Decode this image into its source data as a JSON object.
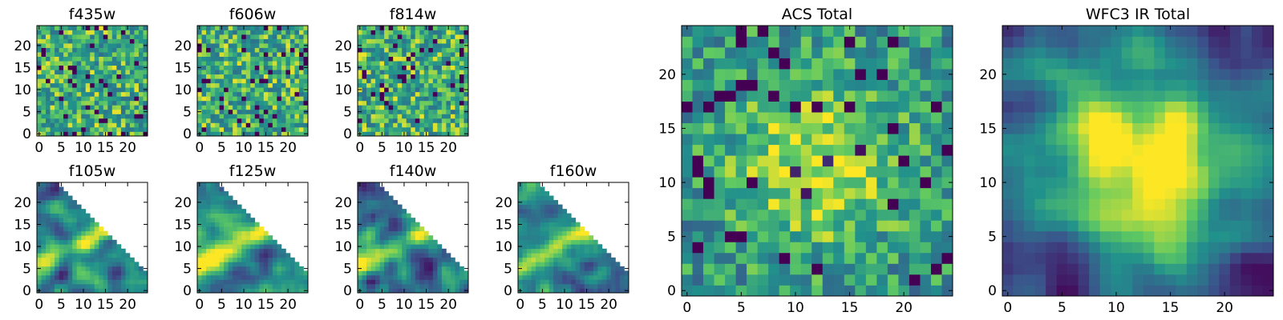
{
  "colormap": [
    "#440154",
    "#3b528b",
    "#21918c",
    "#5ec962",
    "#fde725"
  ],
  "chart_data": [
    {
      "id": "f435w",
      "type": "heatmap",
      "title": "f435w",
      "xlim": [
        0,
        24
      ],
      "ylim": [
        0,
        24
      ],
      "xticks": [
        0,
        5,
        10,
        15,
        20
      ],
      "yticks": [
        0,
        5,
        10,
        15,
        20
      ],
      "pattern": "noise",
      "seed": 11,
      "mask": "none"
    },
    {
      "id": "f606w",
      "type": "heatmap",
      "title": "f606w",
      "xlim": [
        0,
        24
      ],
      "ylim": [
        0,
        24
      ],
      "xticks": [
        0,
        5,
        10,
        15,
        20
      ],
      "yticks": [
        0,
        5,
        10,
        15,
        20
      ],
      "pattern": "noise",
      "seed": 23,
      "mask": "none"
    },
    {
      "id": "f814w",
      "type": "heatmap",
      "title": "f814w",
      "xlim": [
        0,
        24
      ],
      "ylim": [
        0,
        24
      ],
      "xticks": [
        0,
        5,
        10,
        15,
        20
      ],
      "yticks": [
        0,
        5,
        10,
        15,
        20
      ],
      "pattern": "noise",
      "seed": 37,
      "mask": "none"
    },
    {
      "id": "f105w",
      "type": "heatmap",
      "title": "f105w",
      "xlim": [
        0,
        24
      ],
      "ylim": [
        0,
        24
      ],
      "xticks": [
        0,
        5,
        10,
        15,
        20
      ],
      "yticks": [
        0,
        5,
        10,
        15,
        20
      ],
      "pattern": "smooth",
      "seed": 41,
      "mask": "upper-right"
    },
    {
      "id": "f125w",
      "type": "heatmap",
      "title": "f125w",
      "xlim": [
        0,
        24
      ],
      "ylim": [
        0,
        24
      ],
      "xticks": [
        0,
        5,
        10,
        15,
        20
      ],
      "yticks": [
        0,
        5,
        10,
        15,
        20
      ],
      "pattern": "smooth",
      "seed": 53,
      "mask": "upper-right"
    },
    {
      "id": "f140w",
      "type": "heatmap",
      "title": "f140w",
      "xlim": [
        0,
        24
      ],
      "ylim": [
        0,
        24
      ],
      "xticks": [
        0,
        5,
        10,
        15,
        20
      ],
      "yticks": [
        0,
        5,
        10,
        15,
        20
      ],
      "pattern": "smooth",
      "seed": 67,
      "mask": "upper-right"
    },
    {
      "id": "f160w",
      "type": "heatmap",
      "title": "f160w",
      "xlim": [
        0,
        24
      ],
      "ylim": [
        0,
        24
      ],
      "xticks": [
        0,
        5,
        10,
        15,
        20
      ],
      "yticks": [
        0,
        5,
        10,
        15,
        20
      ],
      "pattern": "smooth",
      "seed": 79,
      "mask": "upper-right"
    },
    {
      "id": "acs-total",
      "type": "heatmap",
      "title": "ACS Total",
      "xlim": [
        0,
        24
      ],
      "ylim": [
        0,
        24
      ],
      "xticks": [
        0,
        5,
        10,
        15,
        20
      ],
      "yticks": [
        0,
        5,
        10,
        15,
        20
      ],
      "pattern": "noise-center",
      "seed": 83,
      "mask": "none"
    },
    {
      "id": "wfc3-ir-total",
      "type": "heatmap",
      "title": "WFC3 IR Total",
      "xlim": [
        0,
        24
      ],
      "ylim": [
        0,
        24
      ],
      "xticks": [
        0,
        5,
        10,
        15,
        20
      ],
      "yticks": [
        0,
        5,
        10,
        15,
        20
      ],
      "pattern": "smooth-center",
      "seed": 97,
      "mask": "none"
    }
  ]
}
